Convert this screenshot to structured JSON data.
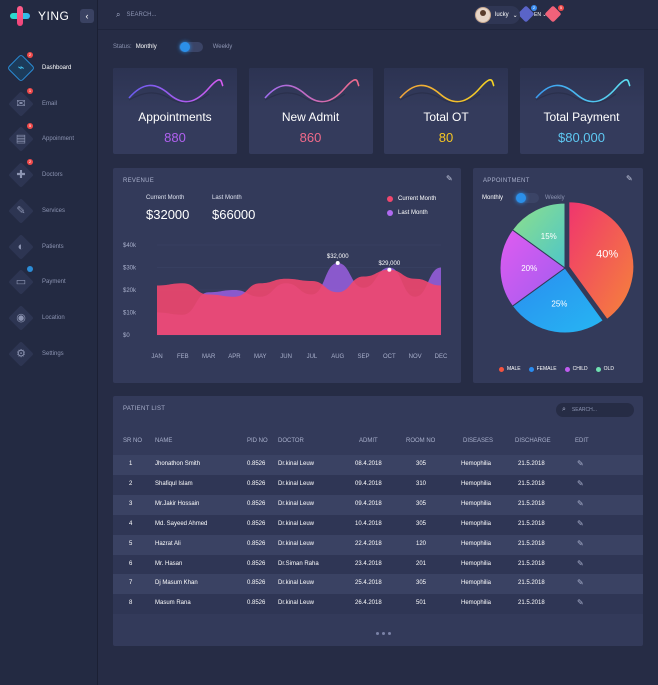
{
  "app": {
    "name": "YING",
    "collapse_icon": "chevron-left-icon"
  },
  "topbar": {
    "search_placeholder": "SEARCH...",
    "notifications": [
      {
        "icon": "user-icon",
        "count": "2",
        "color": "#5a64c8",
        "badge_color": "#3a8cf0"
      },
      {
        "icon": "star-icon",
        "count": "5",
        "color": "#f0627a",
        "badge_color": "#f04a4a"
      }
    ],
    "user": {
      "name": "lucky"
    },
    "language": "EN"
  },
  "sidebar": {
    "items": [
      {
        "label": "Dashboard",
        "icon": "pulse-icon",
        "glyph": "⌁",
        "badge": "2",
        "active": true
      },
      {
        "label": "Email",
        "icon": "mail-icon",
        "glyph": "✉",
        "badge": "1",
        "active": false
      },
      {
        "label": "Appoinment",
        "icon": "document-icon",
        "glyph": "▤",
        "badge": "5",
        "active": false
      },
      {
        "label": "Doctors",
        "icon": "medkit-icon",
        "glyph": "✚",
        "badge": "2",
        "active": false
      },
      {
        "label": "Services",
        "icon": "syringe-icon",
        "glyph": "✎",
        "badge": "",
        "active": false
      },
      {
        "label": "Patients",
        "icon": "pill-icon",
        "glyph": "◐",
        "badge": "",
        "active": false
      },
      {
        "label": "Payment",
        "icon": "card-icon",
        "glyph": "▭",
        "badge": "blue",
        "active": false
      },
      {
        "label": "Location",
        "icon": "pin-icon",
        "glyph": "◉",
        "badge": "",
        "active": false
      },
      {
        "label": "Settings",
        "icon": "gear-icon",
        "glyph": "⚙",
        "badge": "",
        "active": false
      }
    ]
  },
  "status": {
    "label": "Status:",
    "value": "Monthly",
    "alt": "Weekly"
  },
  "stats": [
    {
      "title": "Appointments",
      "value": "880",
      "color": "#b061f0",
      "wave": [
        "#6a5cf0",
        "#d65cf0"
      ]
    },
    {
      "title": "New  Admit",
      "value": "860",
      "color": "#f06a8a",
      "wave": [
        "#a06cf0",
        "#f06a8a"
      ]
    },
    {
      "title": "Total OT",
      "value": "80",
      "color": "#f5c623",
      "wave": [
        "#f0a43a",
        "#f5d323"
      ]
    },
    {
      "title": "Total Payment",
      "value": "$80,000",
      "color": "#5ec8f2",
      "wave": [
        "#3a9cf0",
        "#5ee0f2"
      ]
    }
  ],
  "revenue": {
    "title": "REVENUE",
    "current_label": "Current  Month",
    "current_value": "$32000",
    "last_label": "Last  Month",
    "last_value": "$66000",
    "legend": [
      {
        "label": "Current  Month",
        "color": "#f0476e"
      },
      {
        "label": "Last  Month",
        "color": "#b06af0"
      }
    ],
    "annotations": [
      "$32,000",
      "$29,000"
    ]
  },
  "chart_data": {
    "type": "area",
    "categories": [
      "JAN",
      "FEB",
      "MAR",
      "APR",
      "MAY",
      "JUN",
      "JUL",
      "AUG",
      "SEP",
      "OCT",
      "NOV",
      "DEC"
    ],
    "y_ticks": [
      "$40k",
      "$30k",
      "$20k",
      "$10k",
      "$0"
    ],
    "ylim": [
      0,
      40000
    ],
    "series": [
      {
        "name": "Last  Month",
        "color": "#9a5fe0",
        "values": [
          10000,
          9000,
          19000,
          20000,
          17000,
          23000,
          18000,
          32000,
          21000,
          30000,
          17000,
          30000
        ]
      },
      {
        "name": "Current  Month",
        "color": "#f0476e",
        "values": [
          22000,
          23000,
          18000,
          17000,
          23000,
          25000,
          24000,
          19000,
          26000,
          29000,
          25000,
          22000
        ]
      }
    ]
  },
  "appointment": {
    "title": "APPOINTMENT",
    "toggle_value": "Monthly",
    "toggle_alt": "Weekly",
    "slices": [
      {
        "label": "MALE",
        "percent": 40,
        "text": "40%",
        "color": "#f5533f"
      },
      {
        "label": "FEMALE",
        "percent": 25,
        "text": "25%",
        "color": "#2a8cf0"
      },
      {
        "label": "CHILD",
        "percent": 20,
        "text": "20%",
        "color": "#c05cf0"
      },
      {
        "label": "OLD",
        "percent": 15,
        "text": "15%",
        "color": "#6fe0b0"
      }
    ]
  },
  "patients": {
    "title": "PATIENT LIST",
    "search_placeholder": "SEARCH...",
    "columns": [
      "SR NO",
      "NAME",
      "PID NO",
      "DOCTOR",
      "ADMIT",
      "ROOM NO",
      "DISEASES",
      "DISCHARGE",
      "EDIT"
    ],
    "rows": [
      [
        "1",
        "Jhonathon  Smith",
        "0.8526",
        "Dr.kinal Leuw",
        "08.4.2018",
        "305",
        "Hemophilia",
        "21.5.2018"
      ],
      [
        "2",
        "Shafiqul  Islam",
        "0.8526",
        "Dr.kinal Leuw",
        "09.4.2018",
        "310",
        "Hemophilia",
        "21.5.2018"
      ],
      [
        "3",
        "Mr.Jakir  Hossain",
        "0.8526",
        "Dr.kinal Leuw",
        "09.4.2018",
        "305",
        "Hemophilia",
        "21.5.2018"
      ],
      [
        "4",
        "Md. Sayeed Ahmed",
        "0.8526",
        "Dr.kinal Leuw",
        "10.4.2018",
        "305",
        "Hemophilia",
        "21.5.2018"
      ],
      [
        "5",
        "Hazrat Ali",
        "0.8526",
        "Dr.kinal Leuw",
        "22.4.2018",
        "120",
        "Hemophilia",
        "21.5.2018"
      ],
      [
        "6",
        "Mr. Hasan",
        "0.8526",
        "Dr.Siman Raha",
        "23.4.2018",
        "201",
        "Hemophilia",
        "21.5.2018"
      ],
      [
        "7",
        "Dj  Masum  Khan",
        "0.8526",
        "Dr.kinal Leuw",
        "25.4.2018",
        "305",
        "Hemophilia",
        "21.5.2018"
      ],
      [
        "8",
        "Masum  Rana",
        "0.8526",
        "Dr.kinal Leuw",
        "26.4.2018",
        "501",
        "Hemophilia",
        "21.5.2018"
      ]
    ]
  }
}
